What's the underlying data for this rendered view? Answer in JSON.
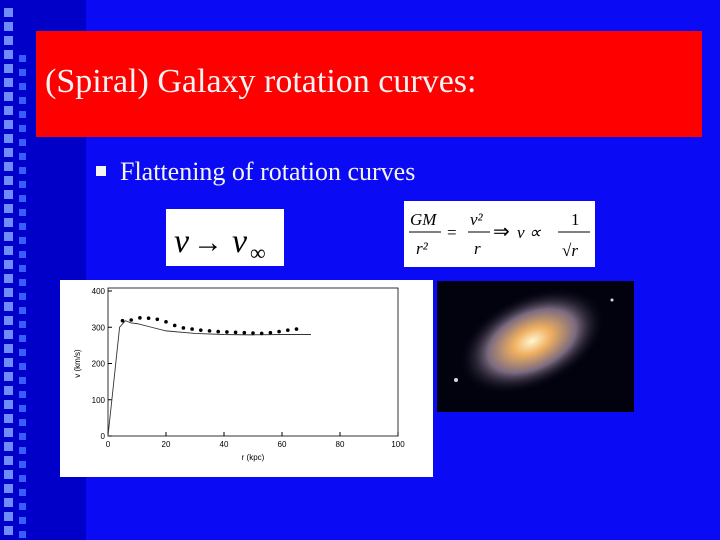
{
  "title": "(Spiral) Galaxy rotation curves:",
  "bullets": [
    "Flattening of rotation curves"
  ],
  "equation_1": {
    "lhs": "v",
    "arrow": "→",
    "rhs": "v",
    "sub": "∞"
  },
  "equation_2": {
    "num_left": "GM",
    "den_left": "r²",
    "equals": "=",
    "num_mid": "v²",
    "den_mid": "r",
    "implies": "⇒",
    "prop": "v ∝",
    "num_right": "1",
    "den_right": "√r"
  },
  "figure": {
    "type": "line",
    "x_label": "r (kpc)",
    "y_label": "v (km/s)",
    "xlim": [
      0,
      100
    ],
    "ylim": [
      0,
      400
    ],
    "xticks": [
      0,
      20,
      40,
      60,
      80,
      100
    ],
    "yticks": [
      0,
      100,
      200,
      300,
      400
    ],
    "points": {
      "x": [
        5,
        8,
        11,
        14,
        17,
        20,
        23,
        26,
        29,
        32,
        35,
        38,
        41,
        44,
        47,
        50,
        53,
        56,
        59,
        62,
        65
      ],
      "values": [
        318,
        320,
        326,
        325,
        322,
        315,
        305,
        298,
        295,
        292,
        290,
        288,
        287,
        286,
        285,
        284,
        283,
        285,
        288,
        292,
        295
      ]
    },
    "model": {
      "x": [
        0,
        2,
        4,
        6,
        8,
        10,
        15,
        20,
        30,
        40,
        50,
        60,
        70
      ],
      "values": [
        0,
        150,
        300,
        318,
        312,
        310,
        300,
        290,
        283,
        280,
        279,
        280,
        280
      ]
    }
  }
}
